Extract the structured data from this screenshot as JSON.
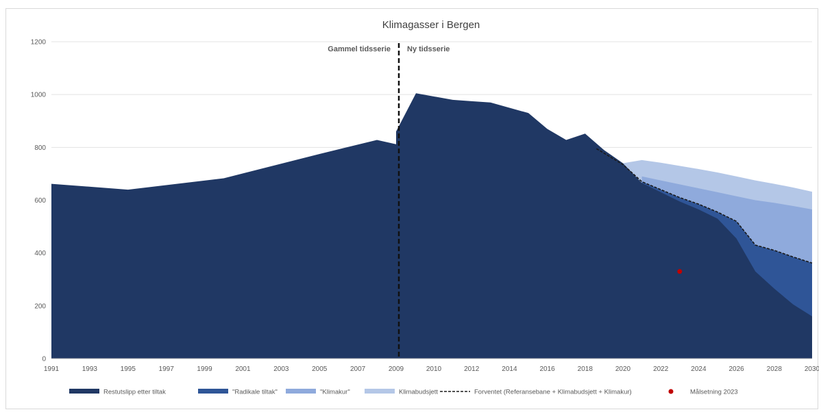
{
  "chart_data": {
    "type": "area",
    "title": "Klimagasser i Bergen",
    "xlabel": "",
    "ylabel": "",
    "ylim": [
      0,
      1200
    ],
    "yticks": [
      0,
      200,
      400,
      600,
      800,
      1000,
      1200
    ],
    "xlim": [
      1991,
      2030
    ],
    "xticks": [
      1991,
      1993,
      1995,
      1997,
      1999,
      2001,
      2003,
      2005,
      2007,
      2009,
      2010,
      2012,
      2014,
      2016,
      2018,
      2020,
      2022,
      2024,
      2026,
      2028,
      2030
    ],
    "grid": "horizontal",
    "legend_position": "bottom",
    "annotations": [
      {
        "text": "Gammel tidsserie",
        "x": 2009,
        "side": "left"
      },
      {
        "text": "Ny tidsserie",
        "x": 2009,
        "side": "right"
      }
    ],
    "old_series": {
      "name": "Restutslipp etter tiltak",
      "color": "#203864",
      "x": [
        1991,
        1995,
        2000,
        2005,
        2008,
        2009
      ],
      "values": [
        662,
        640,
        683,
        775,
        828,
        812
      ]
    },
    "series": [
      {
        "name": "Restutslipp etter tiltak",
        "color": "#203864",
        "x": [
          2009,
          2009.5,
          2011,
          2012,
          2013,
          2014,
          2015,
          2016,
          2017,
          2018,
          2019,
          2020,
          2021,
          2022,
          2023,
          2024,
          2025,
          2026,
          2027,
          2028,
          2029,
          2030
        ],
        "values": [
          860,
          1005,
          980,
          975,
          970,
          950,
          930,
          870,
          828,
          852,
          790,
          740,
          665,
          630,
          595,
          565,
          530,
          455,
          330,
          265,
          205,
          160
        ]
      },
      {
        "name": "\"Radikale tiltak\"",
        "color": "#2f5597",
        "x": [
          2021,
          2022,
          2023,
          2024,
          2025,
          2026,
          2027,
          2028,
          2029,
          2030
        ],
        "values": [
          670,
          640,
          610,
          585,
          555,
          520,
          430,
          410,
          385,
          362
        ]
      },
      {
        "name": "\"Klimakur\"",
        "color": "#8faadc",
        "x": [
          2021,
          2022,
          2023,
          2024,
          2025,
          2026,
          2027,
          2028,
          2029,
          2030
        ],
        "values": [
          690,
          675,
          660,
          645,
          630,
          615,
          600,
          590,
          578,
          565
        ]
      },
      {
        "name": "Klimabudsjett",
        "color": "#b4c7e7",
        "x": [
          2020,
          2021,
          2022,
          2023,
          2024,
          2025,
          2026,
          2027,
          2028,
          2029,
          2030
        ],
        "values": [
          740,
          752,
          742,
          730,
          718,
          705,
          690,
          675,
          662,
          648,
          632
        ]
      }
    ],
    "forventet": {
      "name": "Forventet (Referansebane + Klimabudsjett + Klimakur)",
      "color": "#1a1a1a",
      "x": [
        2018.6,
        2019,
        2020,
        2021,
        2022,
        2023,
        2024,
        2025,
        2026,
        2027,
        2028,
        2029,
        2030
      ],
      "values": [
        795,
        778,
        735,
        670,
        640,
        610,
        585,
        555,
        520,
        430,
        410,
        385,
        362
      ]
    },
    "target": {
      "name": "Målsetning 2023",
      "color": "#c00000",
      "x": 2023,
      "value": 330
    },
    "legend": [
      {
        "name": "Restutslipp etter tiltak",
        "kind": "band",
        "color": "#203864"
      },
      {
        "name": "\"Radikale tiltak\"",
        "kind": "band",
        "color": "#2f5597"
      },
      {
        "name": "\"Klimakur\"",
        "kind": "band",
        "color": "#8faadc"
      },
      {
        "name": "Klimabudsjett",
        "kind": "band",
        "color": "#b4c7e7"
      },
      {
        "name": "Forventet (Referansebane + Klimabudsjett + Klimakur)",
        "kind": "dash",
        "color": "#1a1a1a"
      },
      {
        "name": "Målsetning 2023",
        "kind": "dot",
        "color": "#c00000"
      }
    ]
  }
}
